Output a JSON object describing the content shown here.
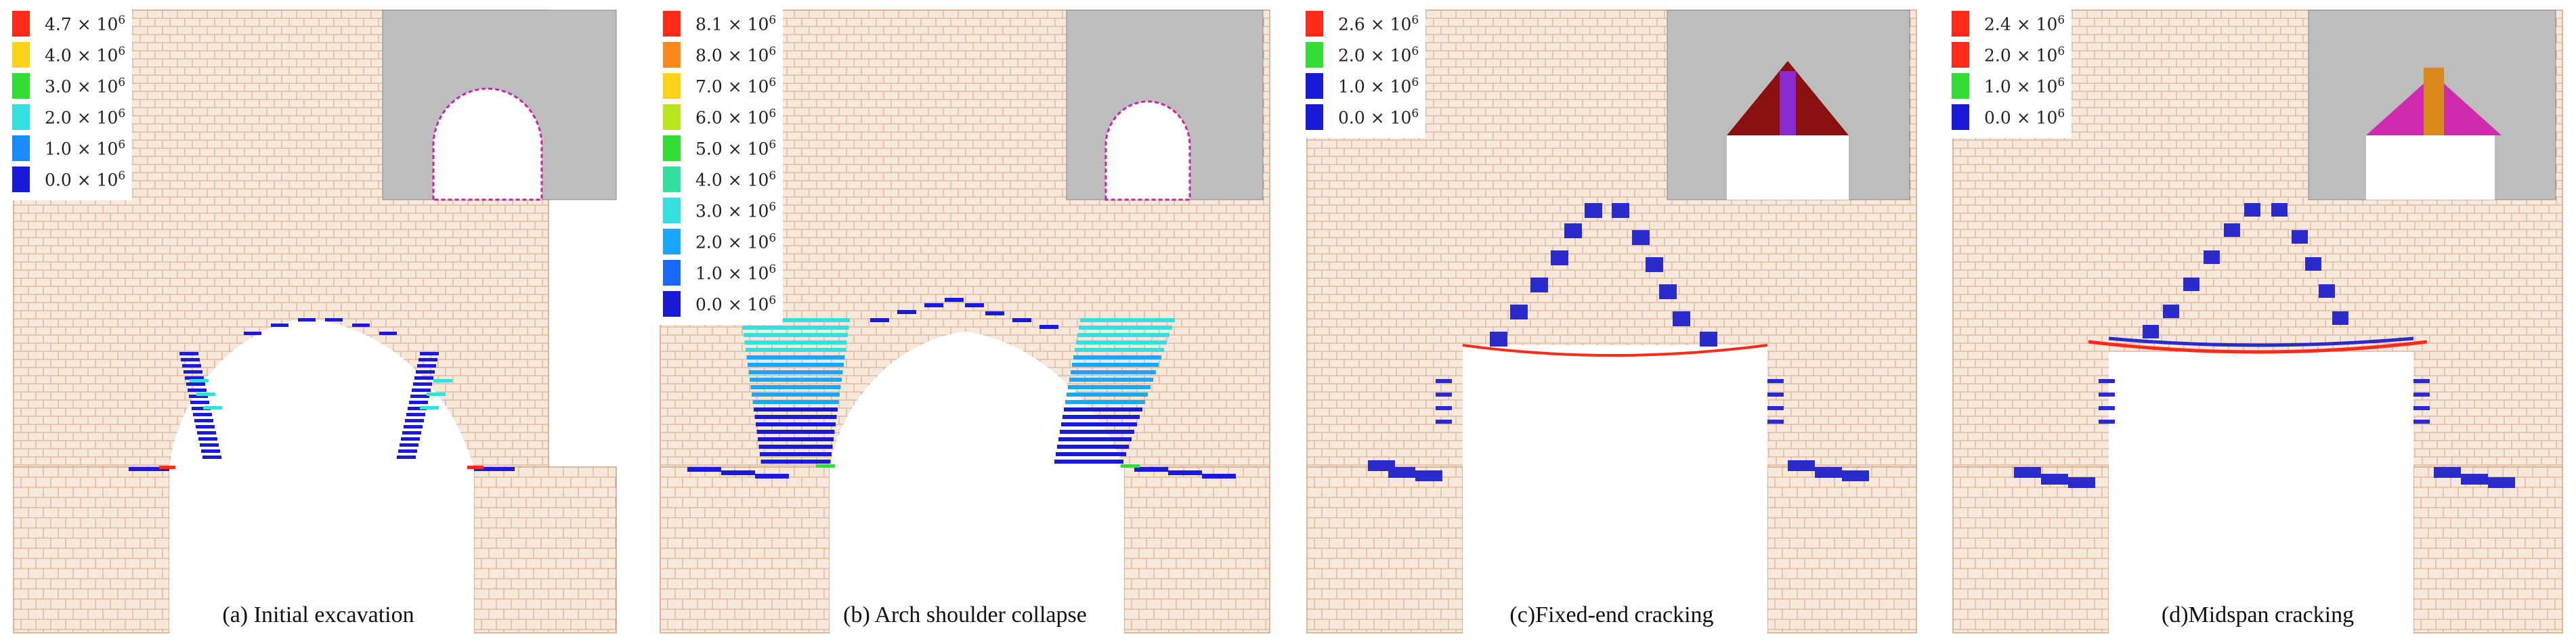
{
  "panels": [
    {
      "id": "a",
      "caption": "(a) Initial excavation",
      "legend": [
        {
          "mantissa": "4.7",
          "exp": "6",
          "color": "#ff2a1a"
        },
        {
          "mantissa": "4.0",
          "exp": "6",
          "color": "#ffd21a"
        },
        {
          "mantissa": "3.0",
          "exp": "6",
          "color": "#33dd33"
        },
        {
          "mantissa": "2.0",
          "exp": "6",
          "color": "#33e0e0"
        },
        {
          "mantissa": "1.0",
          "exp": "6",
          "color": "#1a8cff"
        },
        {
          "mantissa": "0.0",
          "exp": "6",
          "color": "#1a1ad9"
        }
      ]
    },
    {
      "id": "b",
      "caption": "(b) Arch shoulder collapse",
      "legend": [
        {
          "mantissa": "8.1",
          "exp": "6",
          "color": "#ff2a1a"
        },
        {
          "mantissa": "8.0",
          "exp": "6",
          "color": "#ff8a1a"
        },
        {
          "mantissa": "7.0",
          "exp": "6",
          "color": "#ffd21a"
        },
        {
          "mantissa": "6.0",
          "exp": "6",
          "color": "#b8e61a"
        },
        {
          "mantissa": "5.0",
          "exp": "6",
          "color": "#33dd33"
        },
        {
          "mantissa": "4.0",
          "exp": "6",
          "color": "#33e0a0"
        },
        {
          "mantissa": "3.0",
          "exp": "6",
          "color": "#33e0e0"
        },
        {
          "mantissa": "2.0",
          "exp": "6",
          "color": "#1aa8ff"
        },
        {
          "mantissa": "1.0",
          "exp": "6",
          "color": "#1a6aff"
        },
        {
          "mantissa": "0.0",
          "exp": "6",
          "color": "#1a1ad9"
        }
      ]
    },
    {
      "id": "c",
      "caption": "(c)Fixed-end cracking",
      "legend": [
        {
          "mantissa": "2.6",
          "exp": "6",
          "color": "#ff2a1a"
        },
        {
          "mantissa": "2.0",
          "exp": "6",
          "color": "#33dd33"
        },
        {
          "mantissa": "1.0",
          "exp": "6",
          "color": "#1a1ad9"
        },
        {
          "mantissa": "0.0",
          "exp": "6",
          "color": "#1a1ad9"
        }
      ]
    },
    {
      "id": "d",
      "caption": "(d)Midspan cracking",
      "legend": [
        {
          "mantissa": "2.4",
          "exp": "6",
          "color": "#ff2a1a"
        },
        {
          "mantissa": "2.0",
          "exp": "6",
          "color": "#ff2a1a"
        },
        {
          "mantissa": "1.0",
          "exp": "6",
          "color": "#33dd33"
        },
        {
          "mantissa": "0.0",
          "exp": "6",
          "color": "#1a1ad9"
        }
      ]
    }
  ],
  "colors": {
    "rock": "#f6e8da",
    "joint": "#d6a27e",
    "inset_bg": "#bdbdbd",
    "crack": "#2b2bcc"
  }
}
